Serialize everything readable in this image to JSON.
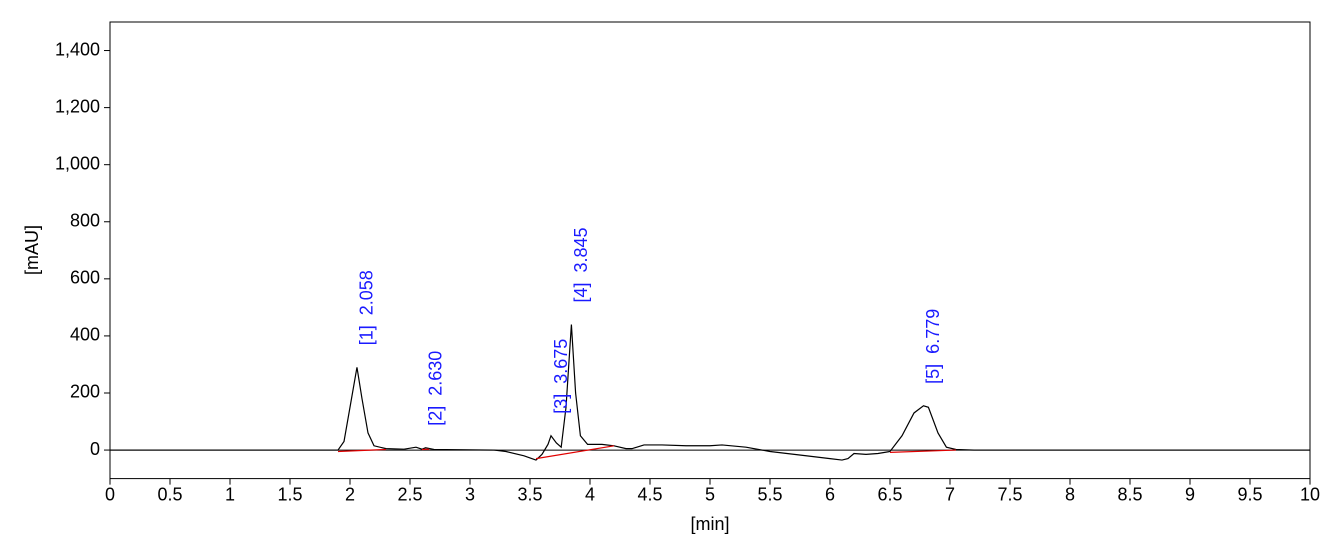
{
  "chart_data": {
    "type": "line",
    "xlabel": "[min]",
    "ylabel": "[mAU]",
    "xlim": [
      0,
      10
    ],
    "ylim": [
      -100,
      1500
    ],
    "xticks": [
      0,
      0.5,
      1,
      1.5,
      2,
      2.5,
      3,
      3.5,
      4,
      4.5,
      5,
      5.5,
      6,
      6.5,
      7,
      7.5,
      8,
      8.5,
      9,
      9.5,
      10
    ],
    "yticks": [
      0,
      200,
      400,
      600,
      800,
      {
        "value": 1000,
        "label": "1,000"
      },
      {
        "value": 1200,
        "label": "1,200"
      },
      {
        "value": 1400,
        "label": "1,400"
      }
    ],
    "zero_line": true,
    "series": [
      {
        "color": "#000000",
        "x": [
          0,
          1.9,
          1.95,
          2.0,
          2.058,
          2.1,
          2.15,
          2.2,
          2.3,
          2.45,
          2.55,
          2.6,
          2.63,
          2.7,
          3.2,
          3.3,
          3.45,
          3.55,
          3.6,
          3.65,
          3.675,
          3.72,
          3.76,
          3.8,
          3.845,
          3.88,
          3.92,
          3.98,
          4.1,
          4.2,
          4.3,
          4.35,
          4.45,
          4.6,
          4.8,
          5.0,
          5.1,
          5.3,
          5.5,
          5.8,
          6.0,
          6.1,
          6.15,
          6.2,
          6.3,
          6.4,
          6.5,
          6.6,
          6.7,
          6.779,
          6.82,
          6.9,
          6.97,
          7.05,
          7.2,
          10
        ],
        "values": [
          0,
          0,
          30,
          150,
          290,
          180,
          60,
          15,
          5,
          3,
          10,
          3,
          8,
          2,
          0,
          -5,
          -20,
          -35,
          -15,
          20,
          50,
          25,
          10,
          150,
          440,
          200,
          50,
          20,
          20,
          15,
          5,
          5,
          18,
          18,
          15,
          15,
          18,
          10,
          -5,
          -20,
          -30,
          -35,
          -30,
          -12,
          -15,
          -12,
          -5,
          50,
          130,
          155,
          150,
          60,
          10,
          2,
          0,
          0
        ]
      },
      {
        "color": "#e00000",
        "x": [
          1.9,
          2.3,
          null,
          2.6,
          2.66,
          null,
          3.55,
          4.2,
          null,
          6.5,
          7.05
        ],
        "values": [
          -5,
          2,
          null,
          2,
          3,
          null,
          -30,
          15,
          null,
          -8,
          0
        ]
      }
    ],
    "annotations": [
      {
        "label": "[1]  2.058",
        "x": 2.058,
        "y": 290
      },
      {
        "label": "[2]  2.630",
        "x": 2.63,
        "y": 8
      },
      {
        "label": "[3]  3.675",
        "x": 3.675,
        "y": 50
      },
      {
        "label": "[4]  3.845",
        "x": 3.845,
        "y": 440
      },
      {
        "label": "[5]  6.779",
        "x": 6.779,
        "y": 155
      }
    ]
  }
}
